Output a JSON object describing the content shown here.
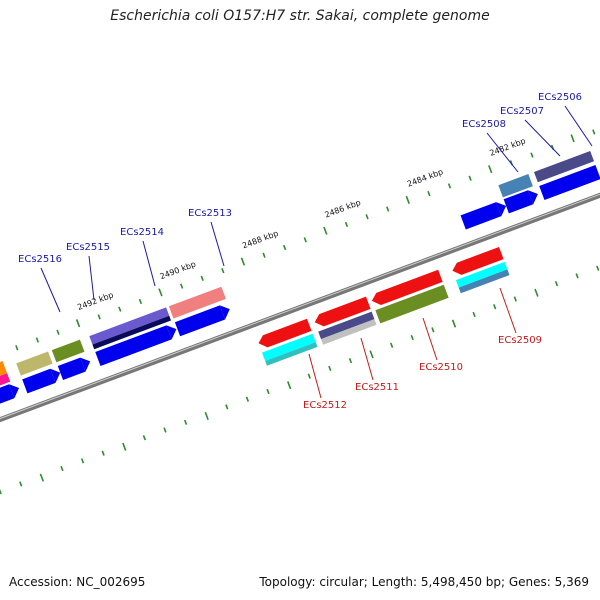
{
  "title": "Escherichia coli O157:H7 str. Sakai, complete genome",
  "footer": {
    "accession": "Accession: NC_002695",
    "summary": "Topology: circular; Length: 5,498,450 bp; Genes: 5,369"
  },
  "colors": {
    "backbone": "#888888",
    "tick": "#2e8b2e",
    "label_plus": "#1a1aa8",
    "label_minus": "#c41a1a"
  },
  "kbp_labels": [
    "2482 kbp",
    "2484 kbp",
    "2486 kbp",
    "2488 kbp",
    "2490 kbp",
    "2492 kbp"
  ],
  "genes_plus": [
    {
      "id": "ECs2506",
      "color": "#4a4a8a"
    },
    {
      "id": "ECs2507",
      "color": "#4682b4"
    },
    {
      "id": "ECs2508",
      "color": "#0000ee"
    },
    {
      "id": "ECs2513",
      "color": "#f08080"
    },
    {
      "id": "ECs2514",
      "color": "#6a5acd"
    },
    {
      "id": "ECs2515",
      "color": "#6b8e23"
    },
    {
      "id": "ECs2516",
      "color": "#bdb76b"
    }
  ],
  "genes_minus": [
    {
      "id": "ECs2509",
      "color": "#ee1111"
    },
    {
      "id": "ECs2510",
      "color": "#6b8e23"
    },
    {
      "id": "ECs2511",
      "color": "#4a4a8a"
    },
    {
      "id": "ECs2512",
      "color": "#ee1111"
    }
  ]
}
